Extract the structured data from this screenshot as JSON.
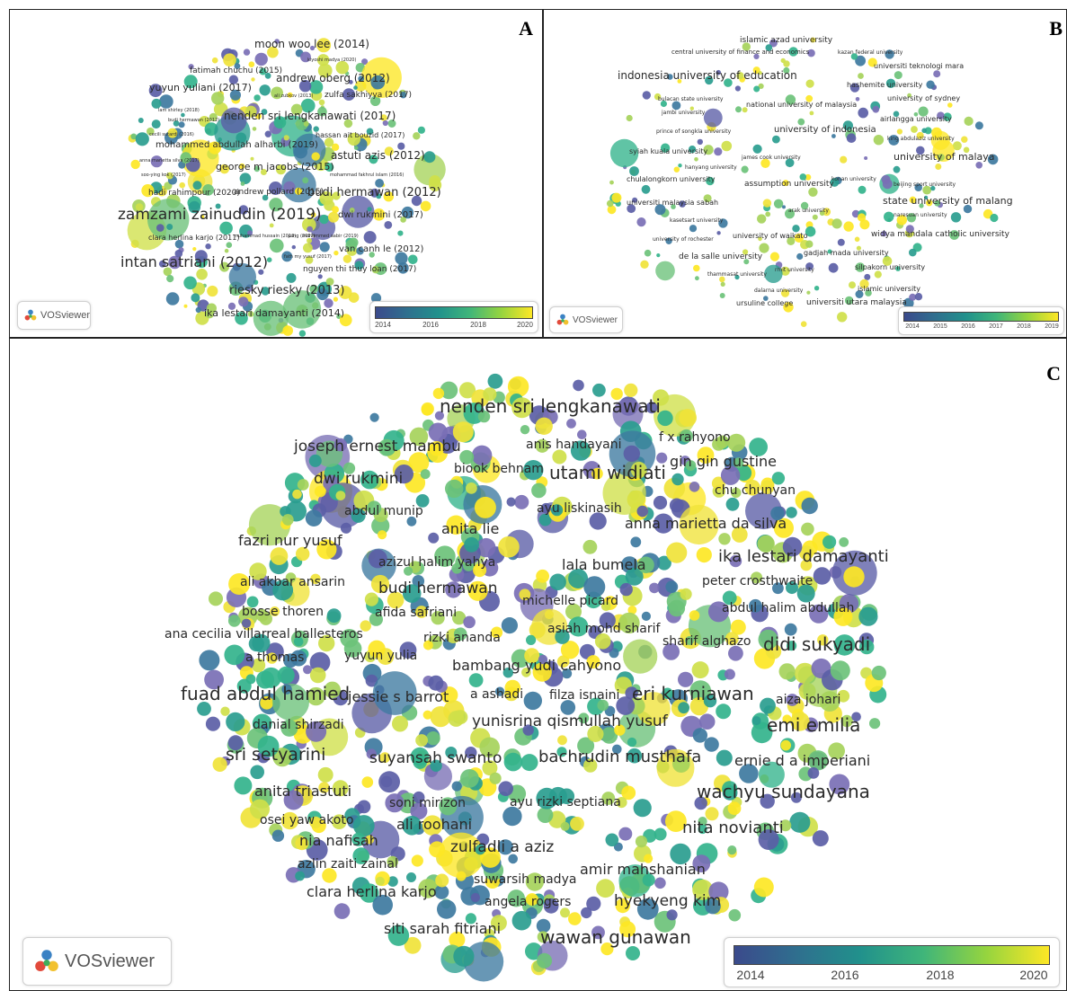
{
  "panels": [
    {
      "id": "A",
      "letter": "A",
      "brand": "VOSviewer",
      "legend_ticks": [
        "2014",
        "2016",
        "2018",
        "2020"
      ],
      "labels": [
        "moon woo lee (2014)",
        "kiyoshi madya (2020)",
        "fatimah chuchu (2015)",
        "andrew oberg (2012)",
        "yuyun yuliani (2017)",
        "ali zubkov (2013)",
        "zulfa sakhiyya (2017)",
        "lam shirley (2018)",
        "nenden sri lengkanawati (2017)",
        "budi hermawan (2012)",
        "cecili sutardi (2016)",
        "hassan ait bouzid (2017)",
        "mohammed abdullah alharbi (2019)",
        "anna marietta silva (2017)",
        "astuti azis (2012)",
        "soo-ying kok (2017)",
        "george m jacobs (2015)",
        "mohammad fakhrul islam (2016)",
        "hadi rahimpour (2020)",
        "andrew pollard (2015)",
        "budi hermawan (2012)",
        "zamzami zainuddin (2019)",
        "dwi rukmini (2017)",
        "clara herlina karjo (2011)",
        "muhammad hussain (2013)",
        "mohammed aabir (2019)",
        "van canh le (2012)",
        "fath my yusuf (2017)",
        "intan satriani (2012)",
        "nguyen thi thuy loan (2017)",
        "riesky riesky (2013)",
        "ika lestari damayanti (2014)",
        "yang (2017)"
      ]
    },
    {
      "id": "B",
      "letter": "B",
      "brand": "VOSviewer",
      "legend_ticks": [
        "2014",
        "2015",
        "2016",
        "2017",
        "2018",
        "2019"
      ],
      "labels": [
        "islamic azad university",
        "central university of finance and economics",
        "kazan federal university",
        "universiti teknologi mara",
        "indonesia university of education",
        "hashemite university",
        "bulacan state university",
        "university of sydney",
        "national university of malaysia",
        "jambi university",
        "airlangga university",
        "prince of songkla university",
        "university of indonesia",
        "king abdulaziz university",
        "syiah kuala university",
        "james cook university",
        "university of malaya",
        "hanyang university",
        "chulalongkorn university",
        "konan university",
        "beijing sport university",
        "assumption university",
        "universiti malaysia sabah",
        "state university of malang",
        "naresuan university",
        "kasetsart university",
        "arak university",
        "university of rochester",
        "university of waikato",
        "widya mandala catholic university",
        "de la salle university",
        "gadjah mada university",
        "thammasat university",
        "rmit university",
        "silpakorn university",
        "dalarna university",
        "islamic university",
        "ursuline college",
        "universiti utara malaysia"
      ]
    },
    {
      "id": "C",
      "letter": "C",
      "brand": "VOSviewer",
      "legend_ticks": [
        "2014",
        "2016",
        "2018",
        "2020"
      ],
      "labels": [
        "nenden sri lengkanawati",
        "joseph ernest mambu",
        "anis handayani",
        "f x rahyono",
        "biook behnam",
        "utami widiati",
        "gin gin gustine",
        "dwi rukmini",
        "chu chunyan",
        "abdul munip",
        "ayu liskinasih",
        "anita lie",
        "anna marietta da silva",
        "fazri nur yusuf",
        "azizul halim yahya",
        "ika lestari damayanti",
        "lala bumela",
        "ali akbar ansarin",
        "peter crosthwaite",
        "budi hermawan",
        "michelle picard",
        "bosse thoren",
        "afida safriani",
        "abdul halim abdullah",
        "asiah mohd sharif",
        "ana cecilia villarreal ballesteros",
        "rizki ananda",
        "sharif alghazo",
        "didi sukyadi",
        "a thomas",
        "yuyun yulia",
        "bambang yudi cahyono",
        "fuad abdul hamied",
        "jessie s barrot",
        "a ashadi",
        "filza isnaini",
        "eri kurniawan",
        "aiza johari",
        "danial shirzadi",
        "yunisrina qismullah yusuf",
        "emi emilia",
        "sri setyarini",
        "suyansah swanto",
        "bachrudin musthafa",
        "ernie d a imperiani",
        "anita triastuti",
        "wachyu sundayana",
        "soni mirizon",
        "ayu rizki septiana",
        "osei yaw akoto",
        "ali roohani",
        "nita novianti",
        "nia nafisah",
        "zulfadli a aziz",
        "azlin zaiti zainal",
        "amir mahshanian",
        "suwarsih madya",
        "clara herlina karjo",
        "angela rogers",
        "hyekyeng kim",
        "siti sarah fitriani",
        "wawan gunawan"
      ]
    }
  ],
  "colors": {
    "viridis": [
      "#440154",
      "#3b528b",
      "#21918c",
      "#5ec962",
      "#fde725"
    ],
    "node_palette": [
      "#5b5ea6",
      "#7a6fb5",
      "#3e7aa0",
      "#2a9d8f",
      "#33b38c",
      "#6cc27a",
      "#a6d35b",
      "#cfe04a",
      "#f0e33a",
      "#fde725"
    ]
  }
}
